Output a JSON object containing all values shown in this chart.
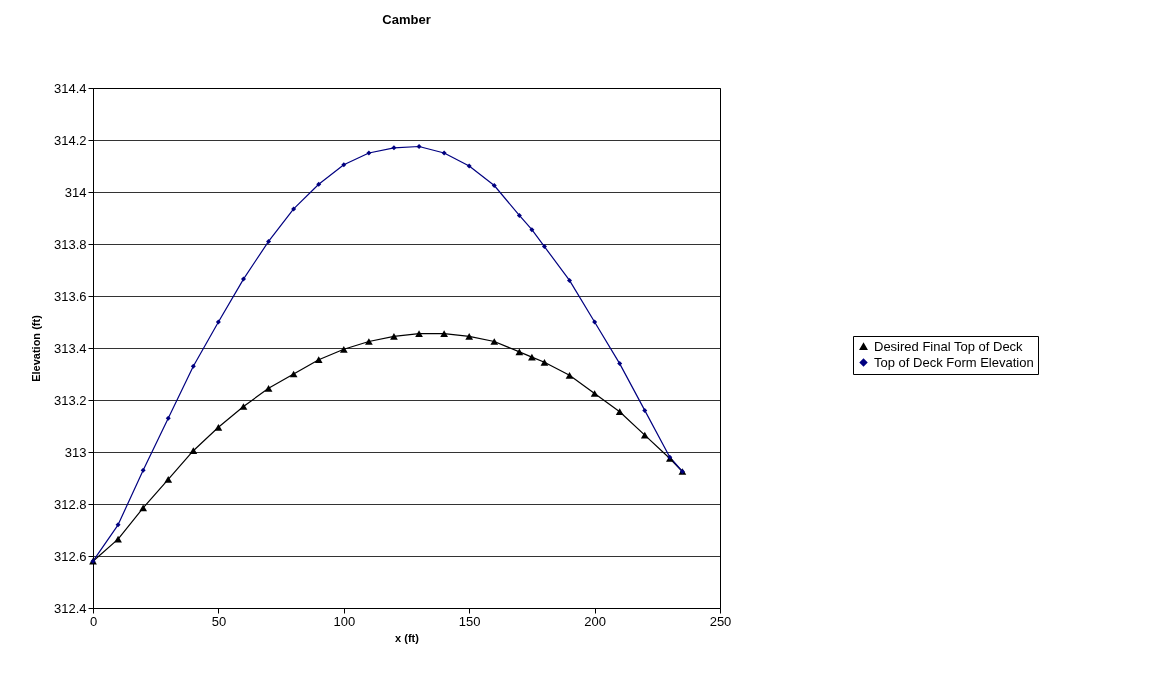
{
  "chart_data": {
    "type": "line",
    "title": "Camber",
    "xlabel": "x (ft)",
    "ylabel": "Elevation (ft)",
    "x": [
      0,
      10,
      20,
      30,
      40,
      50,
      60,
      70,
      80,
      90,
      100,
      110,
      120,
      130,
      140,
      150,
      160,
      170,
      175,
      180,
      190,
      200,
      210,
      220,
      230,
      235
    ],
    "series": [
      {
        "name": "Desired Final Top of Deck",
        "color": "#000000",
        "marker": "triangle",
        "values": [
          312.58,
          312.665,
          312.785,
          312.895,
          313.005,
          313.095,
          313.175,
          313.245,
          313.3,
          313.355,
          313.395,
          313.425,
          313.445,
          313.455,
          313.455,
          313.445,
          313.425,
          313.385,
          313.365,
          313.345,
          313.295,
          313.225,
          313.155,
          313.065,
          312.975,
          312.925
        ]
      },
      {
        "name": "Top of Deck Form Elevation",
        "color": "#000080",
        "marker": "diamond",
        "values": [
          312.58,
          312.72,
          312.93,
          313.13,
          313.33,
          313.5,
          313.665,
          313.81,
          313.935,
          314.03,
          314.105,
          314.15,
          314.17,
          314.175,
          314.15,
          314.1,
          314.025,
          313.91,
          313.855,
          313.79,
          313.66,
          313.5,
          313.34,
          313.16,
          312.98,
          312.925
        ]
      }
    ],
    "xlim": [
      0,
      250
    ],
    "xticks": [
      0,
      50,
      100,
      150,
      200,
      250
    ],
    "ylim": [
      312.4,
      314.4
    ],
    "yticks": [
      312.4,
      312.6,
      312.8,
      313,
      313.2,
      313.4,
      313.6,
      313.8,
      314,
      314.2,
      314.4
    ],
    "grid": "y",
    "legend": "right",
    "line_style": "solid"
  }
}
